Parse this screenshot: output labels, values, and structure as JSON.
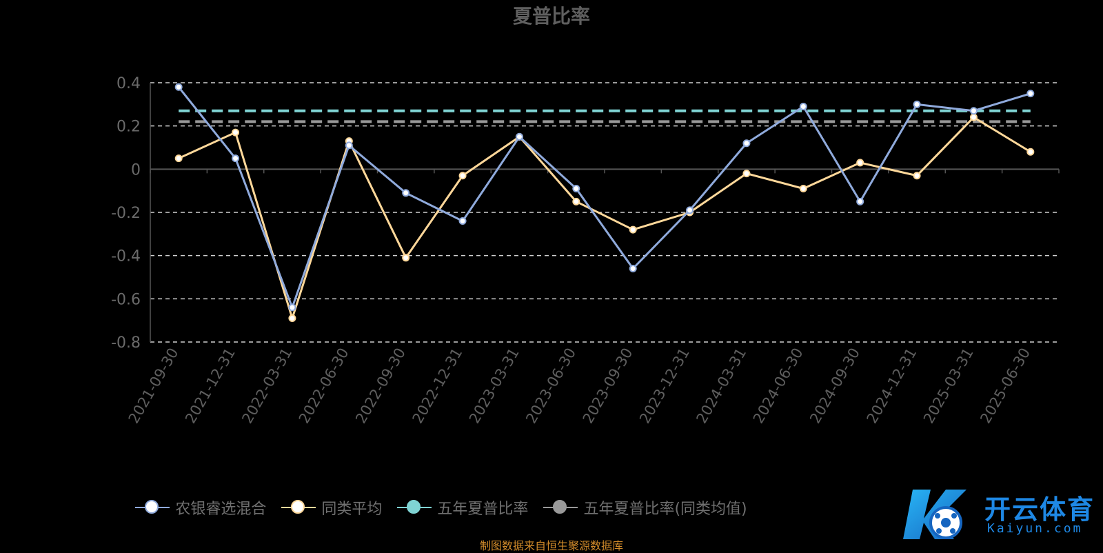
{
  "chart_data": {
    "type": "line",
    "title": "夏普比率",
    "categories": [
      "2021-09-30",
      "2021-12-31",
      "2022-03-31",
      "2022-06-30",
      "2022-09-30",
      "2022-12-31",
      "2023-03-31",
      "2023-06-30",
      "2023-09-30",
      "2023-12-31",
      "2024-03-31",
      "2024-06-30",
      "2024-09-30",
      "2024-12-31",
      "2025-03-31",
      "2025-06-30"
    ],
    "ylim": [
      -0.8,
      0.4
    ],
    "yticks": [
      "0.4",
      "0.2",
      "0",
      "-0.2",
      "-0.4",
      "-0.6",
      "-0.8"
    ],
    "grid": true,
    "legend_position": "bottom",
    "series": [
      {
        "name": "农银睿选混合",
        "color": "#8faadc",
        "values": [
          0.38,
          0.05,
          -0.64,
          0.11,
          -0.11,
          -0.24,
          0.15,
          -0.09,
          -0.46,
          -0.19,
          0.12,
          0.29,
          -0.15,
          0.3,
          0.27,
          0.35
        ]
      },
      {
        "name": "同类平均",
        "color": "#ffd89a",
        "values": [
          0.05,
          0.17,
          -0.69,
          0.13,
          -0.41,
          -0.03,
          0.15,
          -0.15,
          -0.28,
          -0.2,
          -0.02,
          -0.09,
          0.03,
          -0.03,
          0.24,
          0.08
        ]
      },
      {
        "name": "五年夏普比率",
        "color": "#7fd3d3",
        "values": [
          0.27,
          0.27,
          0.27,
          0.27,
          0.27,
          0.27,
          0.27,
          0.27,
          0.27,
          0.27,
          0.27,
          0.27,
          0.27,
          0.27,
          0.27,
          0.27
        ]
      },
      {
        "name": "五年夏普比率(同类均值)",
        "color": "#999999",
        "values": [
          0.22,
          0.22,
          0.22,
          0.22,
          0.22,
          0.22,
          0.22,
          0.22,
          0.22,
          0.22,
          0.22,
          0.22,
          0.22,
          0.22,
          0.22,
          0.22
        ]
      }
    ]
  },
  "footer": {
    "source": "制图数据来自恒生聚源数据库"
  },
  "logo": {
    "main": "开云体育",
    "sub": "Kaiyun.com"
  }
}
